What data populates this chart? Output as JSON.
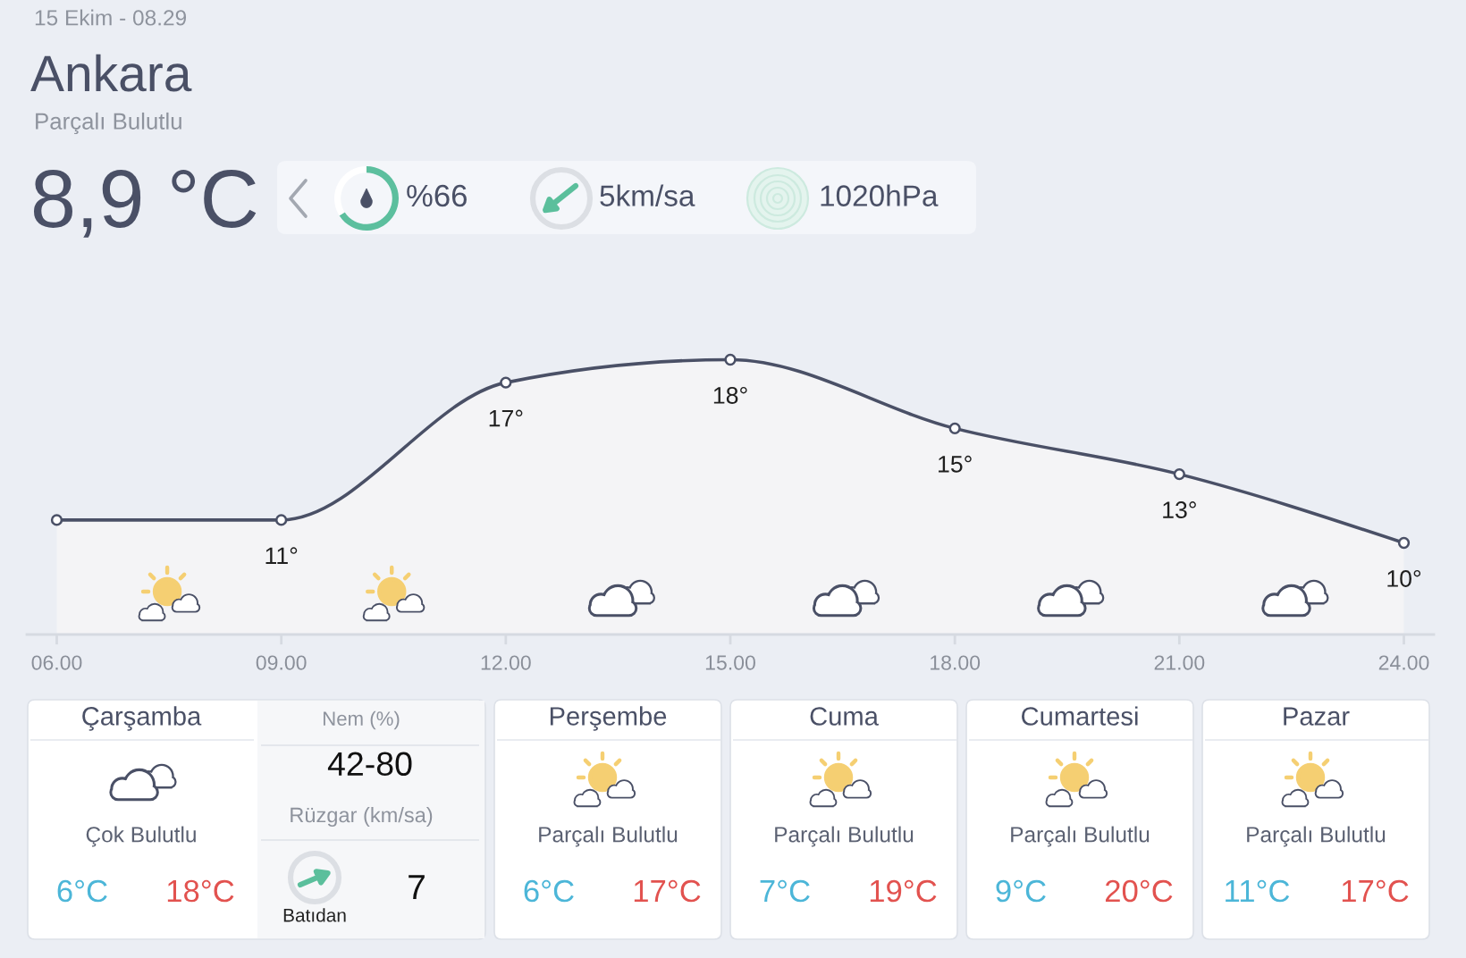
{
  "chart_data": [
    {
      "type": "other",
      "title": "Ankara",
      "subtitle": "Parçalı Bulutlu",
      "annotations": [
        "15 Ekim - 08.29",
        "8,9 °C",
        "%66",
        "5km/sa",
        "1020hPa"
      ]
    },
    {
      "type": "donut",
      "categories": [
        null,
        null
      ],
      "values": [
        66,
        34
      ],
      "colors": [
        "#5cbf9e",
        "#ffffff"
      ]
    },
    {
      "type": "area",
      "x": [
        6,
        9,
        12,
        15,
        18,
        21,
        24
      ],
      "values": [
        11,
        11,
        17,
        18,
        15,
        13,
        10
      ],
      "value_labels": [
        null,
        "11°",
        "17°",
        "18°",
        "15°",
        "13°",
        "10°"
      ],
      "color": "#4a5066",
      "marker": "circle",
      "line_style": "solid",
      "xlim": [
        5.6,
        24.4
      ],
      "xticks": [
        {
          "value": 6,
          "label": "06.00"
        },
        {
          "value": 9,
          "label": "09.00"
        },
        {
          "value": 12,
          "label": "12.00"
        },
        {
          "value": 15,
          "label": "15.00"
        },
        {
          "value": 18,
          "label": "18.00"
        },
        {
          "value": 21,
          "label": "21.00"
        },
        {
          "value": 24,
          "label": "24.00"
        }
      ],
      "tick_labels": "x"
    },
    {
      "type": "other",
      "title": "Çarşamba",
      "annotations": [
        "Çok Bulutlu",
        "6°C",
        "18°C",
        "Nem (%)",
        "42-80",
        "Rüzgar (km/sa)",
        "7",
        "Batıdan"
      ]
    },
    {
      "type": "other",
      "title": "Perşembe",
      "annotations": [
        "Parçalı Bulutlu",
        "6°C",
        "17°C"
      ]
    },
    {
      "type": "other",
      "title": "Cuma",
      "annotations": [
        "Parçalı Bulutlu",
        "7°C",
        "19°C"
      ]
    },
    {
      "type": "other",
      "title": "Cumartesi",
      "annotations": [
        "Parçalı Bulutlu",
        "9°C",
        "20°C"
      ]
    },
    {
      "type": "other",
      "title": "Pazar",
      "annotations": [
        "Parçalı Bulutlu",
        "11°C",
        "17°C"
      ]
    }
  ]
}
